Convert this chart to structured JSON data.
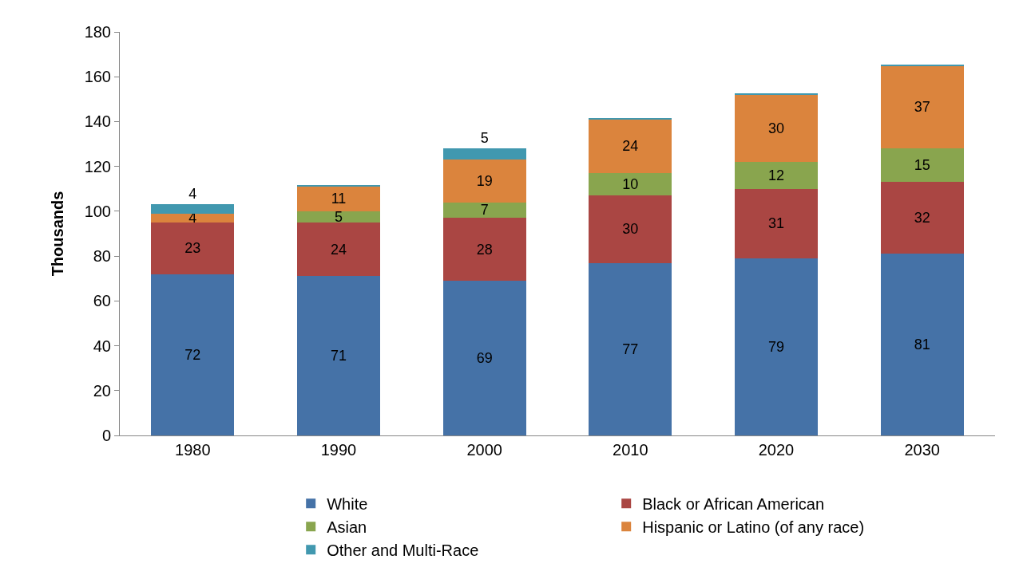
{
  "chart_data": {
    "type": "bar",
    "stacked": true,
    "ylabel": "Thousands",
    "categories": [
      "1980",
      "1990",
      "2000",
      "2010",
      "2020",
      "2030"
    ],
    "series": [
      {
        "name": "White",
        "color": "#4572a7",
        "values": [
          72,
          71,
          69,
          77,
          79,
          81
        ],
        "value_labels": [
          "72",
          "71",
          "69",
          "77",
          "79",
          "81"
        ]
      },
      {
        "name": "Black or African American",
        "color": "#aa4643",
        "values": [
          23,
          24,
          28,
          30,
          31,
          32
        ],
        "value_labels": [
          "23",
          "24",
          "28",
          "30",
          "31",
          "32"
        ]
      },
      {
        "name": "Asian",
        "color": "#89a54e",
        "values": [
          null,
          5,
          7,
          10,
          12,
          15
        ],
        "value_labels": [
          null,
          "5",
          "7",
          "10",
          "12",
          "15"
        ]
      },
      {
        "name": "Hispanic or Latino (of any race)",
        "color": "#db843d",
        "values": [
          4,
          11,
          19,
          24,
          30,
          37
        ],
        "value_labels": [
          "4",
          "11",
          "19",
          "24",
          "30",
          "37"
        ]
      },
      {
        "name": "Other and Multi-Race",
        "color": "#4198af",
        "values": [
          4,
          0.5,
          5,
          0.5,
          0.5,
          0.5
        ],
        "value_labels": [
          "4",
          null,
          "5",
          null,
          null,
          null
        ]
      }
    ],
    "ylim": [
      0,
      180
    ],
    "yticks": [
      0,
      20,
      40,
      60,
      80,
      100,
      120,
      140,
      160,
      180
    ],
    "grid": false,
    "legend": "bottom"
  }
}
